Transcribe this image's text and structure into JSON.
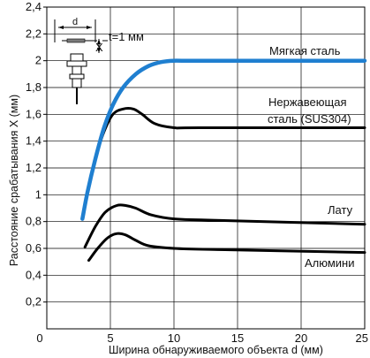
{
  "chart_data": {
    "type": "line",
    "xlabel": "Ширина обнаруживаемого объекта d (мм)",
    "ylabel": "Расстояние срабатывания X (мм)",
    "xlim": [
      0,
      25
    ],
    "ylim": [
      0,
      2.4
    ],
    "x_ticks": [
      "0",
      "5",
      "10",
      "15",
      "20",
      "25"
    ],
    "y_ticks": [
      "0,2",
      "0,4",
      "0,6",
      "0,8",
      "1",
      "1,2",
      "1,4",
      "1,6",
      "1,8",
      "2",
      "2,2",
      "2,4"
    ],
    "grid": true,
    "inset_label": "t=1 мм",
    "inset_letter": "X",
    "inset_marks": [
      "d",
      "X"
    ],
    "series": [
      {
        "name": "Мягкая сталь",
        "color": "#1f7fd0",
        "points": [
          [
            2.8,
            0.82
          ],
          [
            3.2,
            1.02
          ],
          [
            3.8,
            1.26
          ],
          [
            4.5,
            1.5
          ],
          [
            5.2,
            1.67
          ],
          [
            6,
            1.8
          ],
          [
            7,
            1.9
          ],
          [
            8,
            1.96
          ],
          [
            9,
            1.99
          ],
          [
            10,
            2.0
          ],
          [
            12,
            2.0
          ],
          [
            25,
            2.0
          ]
        ]
      },
      {
        "name": "Нержавеющая сталь (SUS304)",
        "color": "#000000",
        "points": [
          [
            2.8,
            0.82
          ],
          [
            3.2,
            1.02
          ],
          [
            3.8,
            1.26
          ],
          [
            4.5,
            1.47
          ],
          [
            5.2,
            1.6
          ],
          [
            6,
            1.64
          ],
          [
            6.8,
            1.64
          ],
          [
            7.5,
            1.6
          ],
          [
            8.5,
            1.53
          ],
          [
            10,
            1.5
          ],
          [
            12,
            1.5
          ],
          [
            25,
            1.5
          ]
        ]
      },
      {
        "name": "Лату",
        "color": "#000000",
        "points": [
          [
            3.0,
            0.61
          ],
          [
            3.8,
            0.76
          ],
          [
            4.6,
            0.87
          ],
          [
            5.5,
            0.92
          ],
          [
            6.2,
            0.92
          ],
          [
            7,
            0.9
          ],
          [
            8.2,
            0.85
          ],
          [
            10,
            0.82
          ],
          [
            13,
            0.81
          ],
          [
            25,
            0.78
          ]
        ]
      },
      {
        "name": "Алюмини",
        "color": "#000000",
        "points": [
          [
            3.3,
            0.51
          ],
          [
            4.0,
            0.6
          ],
          [
            4.8,
            0.68
          ],
          [
            5.5,
            0.71
          ],
          [
            6.2,
            0.7
          ],
          [
            7,
            0.66
          ],
          [
            8,
            0.62
          ],
          [
            10,
            0.6
          ],
          [
            14,
            0.59
          ],
          [
            25,
            0.57
          ]
        ]
      }
    ],
    "labels": {
      "mild_steel": "Мягкая сталь",
      "stainless_1": "Нержавеющая",
      "stainless_2": "сталь (SUS304)",
      "brass": "Лату",
      "aluminum": "Алюмини"
    }
  }
}
